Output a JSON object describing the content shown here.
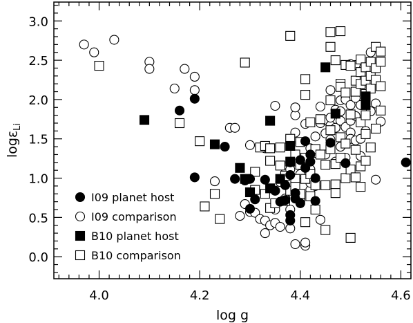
{
  "chart_data": {
    "type": "scatter",
    "title": "",
    "xlabel": "log g",
    "ylabel_main": "logε",
    "ylabel_sub": "Li",
    "xlim": [
      3.91,
      4.62
    ],
    "ylim": [
      -0.28,
      3.24
    ],
    "xticks": [
      {
        "value": 4.0,
        "label": "4.0"
      },
      {
        "value": 4.2,
        "label": "4.2"
      },
      {
        "value": 4.4,
        "label": "4.4"
      },
      {
        "value": 4.6,
        "label": "4.6"
      }
    ],
    "yticks": [
      {
        "value": 0.0,
        "label": "0.0"
      },
      {
        "value": 0.5,
        "label": "0.5"
      },
      {
        "value": 1.0,
        "label": "1.0"
      },
      {
        "value": 1.5,
        "label": "1.5"
      },
      {
        "value": 2.0,
        "label": "2.0"
      },
      {
        "value": 2.5,
        "label": "2.5"
      },
      {
        "value": 3.0,
        "label": "3.0"
      }
    ],
    "legend_position": "bottom-left",
    "series": [
      {
        "name": "I09 planet host",
        "marker": "circle-filled",
        "points": [
          [
            4.16,
            1.86
          ],
          [
            4.19,
            2.01
          ],
          [
            4.19,
            1.01
          ],
          [
            4.25,
            1.4
          ],
          [
            4.27,
            0.99
          ],
          [
            4.29,
            0.97
          ],
          [
            4.3,
            0.61
          ],
          [
            4.3,
            0.99
          ],
          [
            4.31,
            0.73
          ],
          [
            4.33,
            0.98
          ],
          [
            4.35,
            0.84
          ],
          [
            4.36,
            0.7
          ],
          [
            4.37,
            0.91
          ],
          [
            4.37,
            0.72
          ],
          [
            4.38,
            0.46
          ],
          [
            4.38,
            0.53
          ],
          [
            4.38,
            1.04
          ],
          [
            4.38,
            1.2
          ],
          [
            4.39,
            0.81
          ],
          [
            4.39,
            0.74
          ],
          [
            4.4,
            0.68
          ],
          [
            4.4,
            1.23
          ],
          [
            4.41,
            1.13
          ],
          [
            4.41,
            1.47
          ],
          [
            4.42,
            1.3
          ],
          [
            4.42,
            1.21
          ],
          [
            4.43,
            1.0
          ],
          [
            4.43,
            0.71
          ],
          [
            4.46,
            1.45
          ],
          [
            4.49,
            1.19
          ],
          [
            4.61,
            1.2
          ]
        ]
      },
      {
        "name": "I09 comparison",
        "marker": "circle-open",
        "points": [
          [
            3.97,
            2.7
          ],
          [
            3.99,
            2.6
          ],
          [
            4.03,
            2.76
          ],
          [
            4.1,
            2.48
          ],
          [
            4.1,
            2.39
          ],
          [
            4.15,
            2.14
          ],
          [
            4.17,
            2.39
          ],
          [
            4.19,
            2.29
          ],
          [
            4.19,
            2.12
          ],
          [
            4.26,
            1.64
          ],
          [
            4.27,
            1.64
          ],
          [
            4.3,
            1.42
          ],
          [
            4.33,
            1.38
          ],
          [
            4.35,
            1.92
          ],
          [
            4.23,
            0.96
          ],
          [
            4.28,
            0.52
          ],
          [
            4.29,
            0.67
          ],
          [
            4.3,
            0.57
          ],
          [
            4.31,
            0.56
          ],
          [
            4.32,
            0.48
          ],
          [
            4.33,
            0.46
          ],
          [
            4.33,
            0.3
          ],
          [
            4.34,
            0.4
          ],
          [
            4.35,
            0.43
          ],
          [
            4.35,
            0.6
          ],
          [
            4.35,
            0.84
          ],
          [
            4.36,
            0.38
          ],
          [
            4.36,
            0.95
          ],
          [
            4.37,
            1.06
          ],
          [
            4.37,
            0.74
          ],
          [
            4.38,
            1.11
          ],
          [
            4.38,
            0.6
          ],
          [
            4.38,
            0.36
          ],
          [
            4.39,
            0.16
          ],
          [
            4.39,
            1.58
          ],
          [
            4.39,
            1.8
          ],
          [
            4.39,
            1.9
          ],
          [
            4.4,
            1.05
          ],
          [
            4.4,
            0.71
          ],
          [
            4.41,
            0.14
          ],
          [
            4.41,
            0.18
          ],
          [
            4.41,
            1.69
          ],
          [
            4.42,
            0.85
          ],
          [
            4.42,
            0.94
          ],
          [
            4.42,
            1.11
          ],
          [
            4.42,
            1.38
          ],
          [
            4.43,
            1.32
          ],
          [
            4.43,
            0.9
          ],
          [
            4.43,
            1.53
          ],
          [
            4.44,
            0.47
          ],
          [
            4.44,
            1.7
          ],
          [
            4.44,
            1.91
          ],
          [
            4.45,
            1.3
          ],
          [
            4.45,
            1.57
          ],
          [
            4.45,
            1.74
          ],
          [
            4.46,
            1.49
          ],
          [
            4.46,
            1.67
          ],
          [
            4.46,
            1.77
          ],
          [
            4.46,
            2.12
          ],
          [
            4.47,
            1.87
          ],
          [
            4.47,
            1.64
          ],
          [
            4.47,
            1.21
          ],
          [
            4.48,
            1.99
          ],
          [
            4.48,
            1.85
          ],
          [
            4.48,
            1.73
          ],
          [
            4.48,
            1.4
          ],
          [
            4.49,
            2.0
          ],
          [
            4.49,
            1.65
          ],
          [
            4.49,
            1.26
          ],
          [
            4.5,
            2.45
          ],
          [
            4.5,
            1.93
          ],
          [
            4.5,
            1.73
          ],
          [
            4.5,
            1.58
          ],
          [
            4.5,
            1.5
          ],
          [
            4.51,
            2.44
          ],
          [
            4.51,
            2.02
          ],
          [
            4.51,
            1.79
          ],
          [
            4.51,
            1.48
          ],
          [
            4.52,
            1.93
          ],
          [
            4.52,
            1.5
          ],
          [
            4.52,
            1.28
          ],
          [
            4.53,
            1.99
          ],
          [
            4.53,
            1.6
          ],
          [
            4.54,
            1.85
          ],
          [
            4.54,
            2.6
          ],
          [
            4.55,
            1.95
          ],
          [
            4.55,
            0.98
          ],
          [
            4.56,
            1.72
          ]
        ]
      },
      {
        "name": "B10 planet host",
        "marker": "square-filled",
        "points": [
          [
            4.09,
            1.74
          ],
          [
            4.23,
            1.43
          ],
          [
            4.28,
            1.13
          ],
          [
            4.29,
            0.99
          ],
          [
            4.3,
            0.82
          ],
          [
            4.34,
            1.73
          ],
          [
            4.34,
            0.87
          ],
          [
            4.36,
            0.99
          ],
          [
            4.38,
            1.41
          ],
          [
            4.38,
            1.21
          ],
          [
            4.45,
            2.41
          ],
          [
            4.47,
            1.82
          ],
          [
            4.53,
            2.04
          ],
          [
            4.53,
            1.93
          ]
        ]
      },
      {
        "name": "B10 comparison",
        "marker": "square-open",
        "points": [
          [
            4.0,
            2.43
          ],
          [
            4.16,
            1.7
          ],
          [
            4.2,
            1.47
          ],
          [
            4.21,
            0.64
          ],
          [
            4.23,
            0.8
          ],
          [
            4.24,
            0.48
          ],
          [
            4.29,
            2.47
          ],
          [
            4.31,
            1.08
          ],
          [
            4.31,
            0.85
          ],
          [
            4.32,
            1.39
          ],
          [
            4.33,
            1.41
          ],
          [
            4.33,
            0.8
          ],
          [
            4.34,
            1.38
          ],
          [
            4.34,
            1.22
          ],
          [
            4.34,
            0.62
          ],
          [
            4.35,
            0.68
          ],
          [
            4.36,
            1.39
          ],
          [
            4.36,
            1.16
          ],
          [
            4.37,
            1.03
          ],
          [
            4.37,
            0.71
          ],
          [
            4.38,
            2.81
          ],
          [
            4.38,
            1.5
          ],
          [
            4.38,
            0.84
          ],
          [
            4.39,
            1.3
          ],
          [
            4.39,
            0.99
          ],
          [
            4.39,
            0.89
          ],
          [
            4.4,
            1.46
          ],
          [
            4.4,
            1.17
          ],
          [
            4.4,
            0.8
          ],
          [
            4.41,
            2.26
          ],
          [
            4.41,
            2.06
          ],
          [
            4.41,
            1.26
          ],
          [
            4.41,
            0.99
          ],
          [
            4.41,
            0.44
          ],
          [
            4.42,
            1.71
          ],
          [
            4.42,
            1.05
          ],
          [
            4.42,
            0.77
          ],
          [
            4.43,
            1.37
          ],
          [
            4.43,
            0.91
          ],
          [
            4.43,
            0.6
          ],
          [
            4.44,
            1.75
          ],
          [
            4.44,
            1.3
          ],
          [
            4.45,
            1.17
          ],
          [
            4.45,
            0.91
          ],
          [
            4.45,
            0.34
          ],
          [
            4.46,
            2.67
          ],
          [
            4.46,
            2.86
          ],
          [
            4.46,
            1.99
          ],
          [
            4.46,
            1.61
          ],
          [
            4.46,
            1.37
          ],
          [
            4.47,
            2.5
          ],
          [
            4.47,
            1.18
          ],
          [
            4.47,
            0.92
          ],
          [
            4.47,
            0.81
          ],
          [
            4.48,
            2.87
          ],
          [
            4.48,
            2.2
          ],
          [
            4.48,
            2.16
          ],
          [
            4.48,
            1.52
          ],
          [
            4.48,
            1.26
          ],
          [
            4.49,
            2.44
          ],
          [
            4.49,
            2.09
          ],
          [
            4.49,
            1.44
          ],
          [
            4.49,
            1.0
          ],
          [
            4.5,
            2.43
          ],
          [
            4.5,
            1.81
          ],
          [
            4.5,
            1.11
          ],
          [
            4.5,
            0.24
          ],
          [
            4.51,
            2.24
          ],
          [
            4.51,
            2.1
          ],
          [
            4.51,
            1.36
          ],
          [
            4.51,
            1.01
          ],
          [
            4.52,
            2.51
          ],
          [
            4.52,
            2.35
          ],
          [
            4.52,
            2.2
          ],
          [
            4.52,
            1.71
          ],
          [
            4.52,
            1.15
          ],
          [
            4.52,
            0.89
          ],
          [
            4.53,
            2.41
          ],
          [
            4.53,
            2.24
          ],
          [
            4.53,
            2.07
          ],
          [
            4.53,
            1.8
          ],
          [
            4.53,
            1.56
          ],
          [
            4.53,
            1.22
          ],
          [
            4.54,
            2.48
          ],
          [
            4.54,
            2.3
          ],
          [
            4.54,
            2.14
          ],
          [
            4.54,
            1.39
          ],
          [
            4.55,
            2.67
          ],
          [
            4.55,
            2.4
          ],
          [
            4.55,
            2.25
          ],
          [
            4.55,
            1.63
          ],
          [
            4.56,
            2.61
          ],
          [
            4.56,
            2.48
          ],
          [
            4.56,
            2.17
          ],
          [
            4.56,
            1.86
          ]
        ]
      }
    ]
  }
}
